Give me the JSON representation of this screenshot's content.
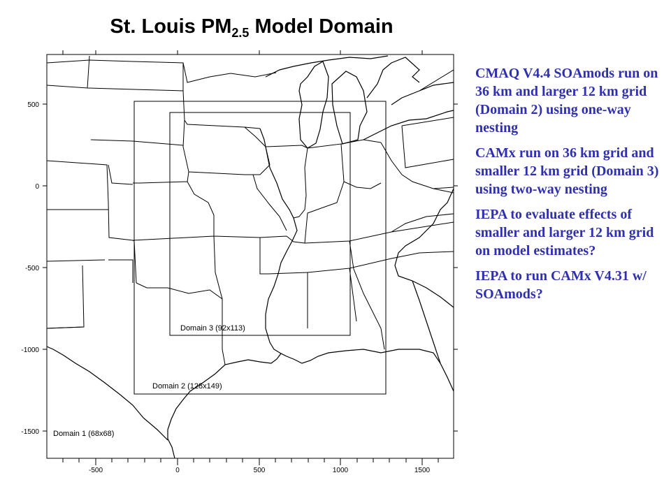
{
  "title": {
    "main": "St. Louis PM",
    "sub": "2.5",
    "suffix": " Model Domain"
  },
  "map": {
    "x_ticks": [
      "-500",
      "0",
      "500",
      "1000",
      "1500"
    ],
    "y_ticks": [
      "500",
      "0",
      "-500",
      "-1000",
      "-1500"
    ],
    "domains": [
      {
        "name": "Domain 1",
        "grid": "(68x68)",
        "label": "Domain 1 (68x68)"
      },
      {
        "name": "Domain 2",
        "grid": "(128x149)",
        "label": "Domain 2 (128x149)"
      },
      {
        "name": "Domain 3",
        "grid": "(92x113)",
        "label": "Domain 3 (92x113)"
      }
    ]
  },
  "notes": [
    "CMAQ V4.4 SOAmods run on 36 km and larger 12 km grid (Domain 2) using one-way nesting",
    "CAMx run on 36 km grid and smaller 12 km grid (Domain 3) using two-way nesting",
    "IEPA to evaluate effects of smaller and larger 12 km grid on model estimates?",
    "IEPA to run CAMx V4.31 w/ SOAmods?"
  ]
}
